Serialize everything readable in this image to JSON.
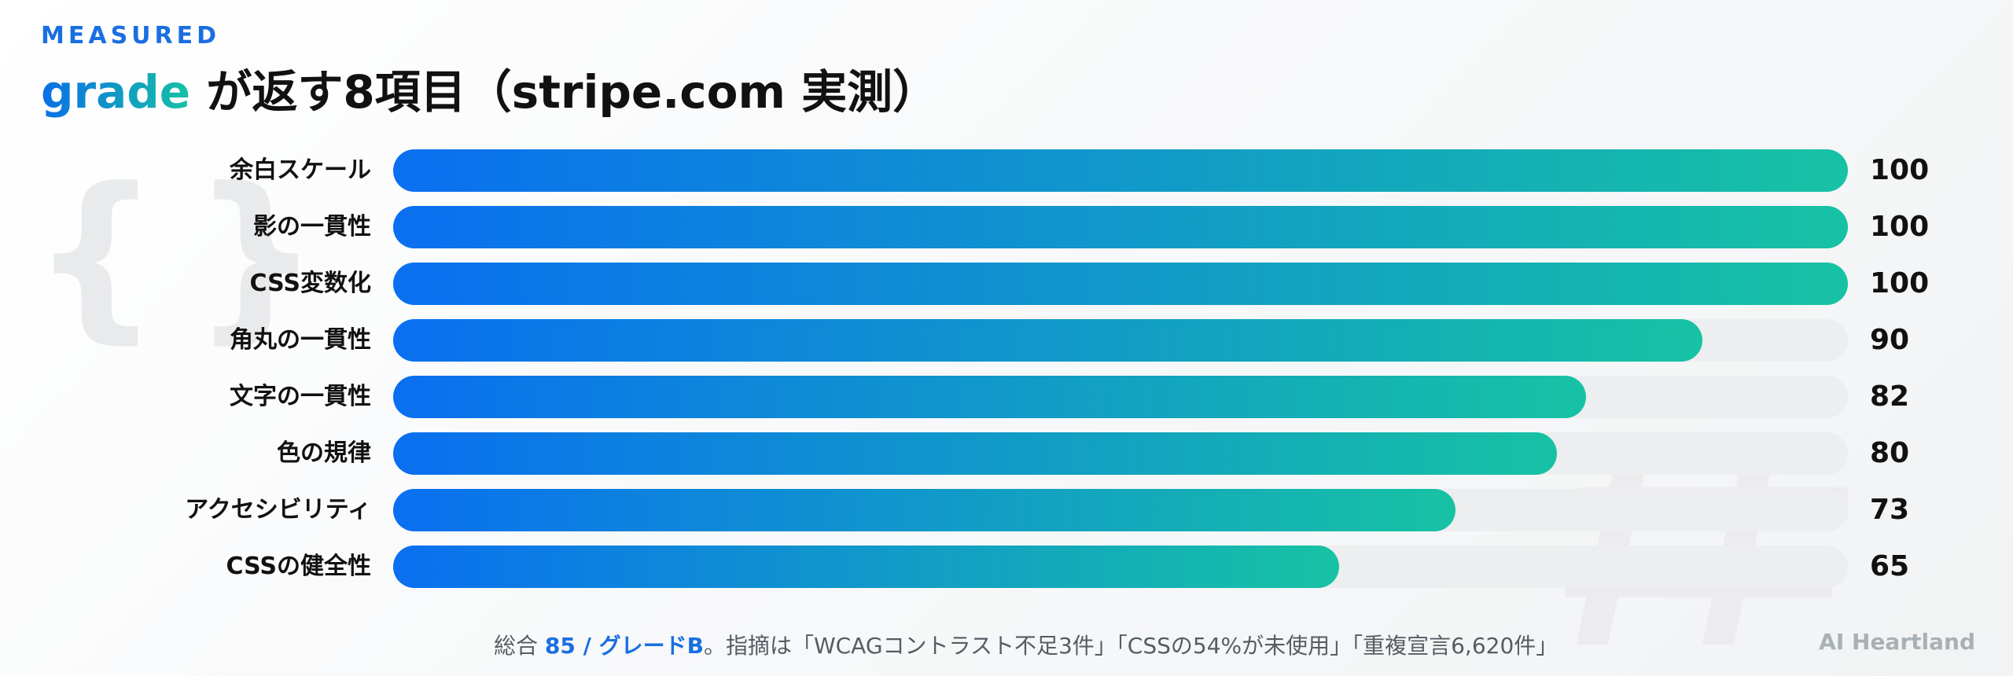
{
  "header": {
    "eyebrow": "MEASURED",
    "title_accent": "grade",
    "title_rest": " が返す8項目（stripe.com 実測）"
  },
  "decor": {
    "left_glyph": "{ }"
  },
  "chart_data": {
    "type": "bar",
    "orientation": "horizontal",
    "categories": [
      "余白スケール",
      "影の一貫性",
      "CSS変数化",
      "角丸の一貫性",
      "文字の一貫性",
      "色の規律",
      "アクセシビリティ",
      "CSSの健全性"
    ],
    "values": [
      100,
      100,
      100,
      90,
      82,
      80,
      73,
      65
    ],
    "value_labels": [
      "100",
      "100",
      "100",
      "90",
      "82",
      "80",
      "73",
      "65"
    ],
    "xlim": [
      0,
      100
    ],
    "grid": false,
    "colors": {
      "bar_start": "#0a6ff0",
      "bar_end": "#17c2a4",
      "track": "#eceeef"
    }
  },
  "footer": {
    "prefix": "総合 ",
    "accent": "85 / グレードB",
    "rest": "。指摘は「WCAGコントラスト不足3件」「CSSの54%が未使用」「重複宣言6,620件」"
  },
  "brand": "AI Heartland"
}
